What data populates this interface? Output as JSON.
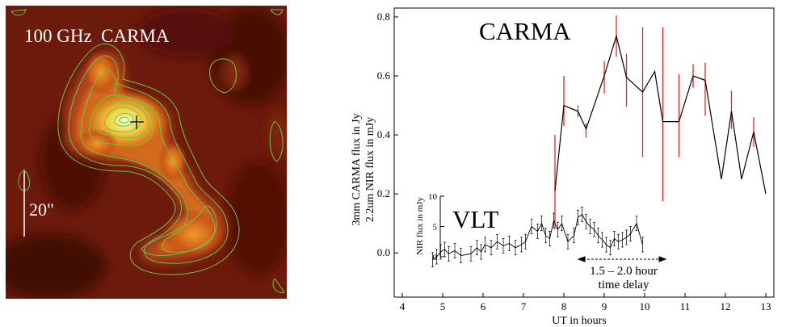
{
  "left_panel": {
    "title": "100 GHz  CARMA",
    "scale_bar_label": "20\""
  },
  "chart_data": {
    "type": "line",
    "xlabel": "UT  in hours",
    "ylabel_line1": "3mm CARMA flux in Jy",
    "ylabel_line2": "2.2um NIR flux in mJy",
    "xlim": [
      3.8,
      13.2
    ],
    "ylim": [
      -0.15,
      0.83
    ],
    "x_ticks": [
      4,
      5,
      6,
      7,
      8,
      9,
      10,
      11,
      12,
      13
    ],
    "y_ticks": [
      0.0,
      0.2,
      0.4,
      0.6,
      0.8
    ],
    "y_tick_labels": [
      "0.0",
      "0.2",
      "0.4",
      "0.6",
      "0.8"
    ],
    "series": [
      {
        "name": "CARMA",
        "color": "#000000",
        "error_color": "#e8232a",
        "x": [
          7.78,
          8.0,
          8.35,
          8.55,
          9.0,
          9.3,
          9.55,
          9.95,
          10.25,
          10.45,
          10.85,
          11.2,
          11.5,
          11.9,
          12.15,
          12.4,
          12.7,
          13.0
        ],
        "y": [
          0.21,
          0.5,
          0.48,
          0.42,
          0.6,
          0.735,
          0.595,
          0.545,
          0.615,
          0.445,
          0.445,
          0.6,
          0.585,
          0.25,
          0.48,
          0.25,
          0.41,
          0.2
        ],
        "err_low": [
          0.13,
          0.07,
          0.02,
          0.03,
          0.06,
          0.07,
          0.1,
          0.22,
          0.0,
          0.27,
          0.12,
          0.04,
          0.12,
          0.0,
          0.06,
          0.0,
          0.05,
          0.0
        ],
        "err_high": [
          0.19,
          0.1,
          0.02,
          0.02,
          0.05,
          0.07,
          0.08,
          0.22,
          0.0,
          0.32,
          0.16,
          0.04,
          0.06,
          0.0,
          0.07,
          0.0,
          0.05,
          0.0
        ]
      }
    ],
    "annotations": {
      "carma_label": "CARMA",
      "vlt_label": "VLT",
      "delay_line1": "1.5 – 2.0 hour",
      "delay_line2": "time delay"
    },
    "inset": {
      "ylabel": "NIR flux in mJy",
      "ylim": [
        0,
        10
      ],
      "y_ticks": [
        0,
        5,
        10
      ],
      "y_tick_labels": [
        "0",
        "5",
        "10"
      ],
      "series": [
        {
          "name": "VLT",
          "color": "#000000",
          "x": [
            4.75,
            4.85,
            4.95,
            5.05,
            5.15,
            5.3,
            5.45,
            5.7,
            5.85,
            5.95,
            6.05,
            6.2,
            6.35,
            6.5,
            6.65,
            6.8,
            6.95,
            7.05,
            7.2,
            7.35,
            7.45,
            7.55,
            7.65,
            7.75,
            7.85,
            7.95,
            8.1,
            8.25,
            8.35,
            8.45,
            8.55,
            8.65,
            8.75,
            8.85,
            8.95,
            9.05,
            9.15,
            9.25,
            9.35,
            9.45,
            9.55,
            9.65,
            9.8,
            9.95
          ],
          "y": [
            -0.5,
            0.0,
            0.8,
            1.2,
            0.5,
            1.0,
            0.2,
            0.5,
            1.5,
            0.8,
            2.0,
            1.5,
            2.5,
            1.8,
            2.2,
            1.5,
            2.0,
            2.5,
            5.0,
            4.2,
            5.5,
            3.5,
            3.0,
            6.0,
            4.5,
            5.5,
            2.5,
            3.5,
            6.5,
            7.0,
            5.8,
            5.0,
            4.5,
            3.5,
            2.8,
            2.0,
            1.5,
            3.0,
            2.5,
            2.8,
            3.2,
            3.8,
            5.5,
            2.0
          ]
        }
      ]
    }
  }
}
